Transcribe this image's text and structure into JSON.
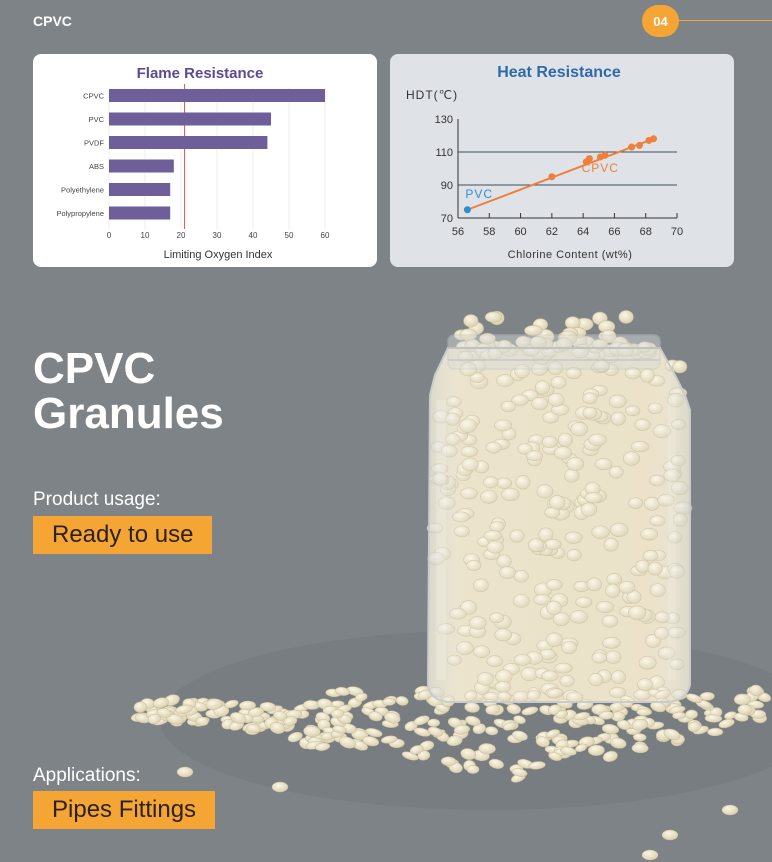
{
  "header": {
    "section_label": "CPVC",
    "page_number": "04",
    "accent": "#f5a533"
  },
  "hero": {
    "title_line1": "CPVC",
    "title_line2": "Granules"
  },
  "usage": {
    "label": "Product usage:",
    "value": "Ready to use"
  },
  "applications": {
    "label": "Applications:",
    "value": "Pipes Fittings"
  },
  "chart_data": [
    {
      "type": "bar",
      "orientation": "horizontal",
      "title": "Flame Resistance",
      "xlabel": "Limiting Oxygen Index",
      "ylabel": "",
      "categories": [
        "CPVC",
        "PVC",
        "PVDF",
        "ABS",
        "Polyethylene",
        "Polypropylene"
      ],
      "values": [
        60,
        45,
        44,
        18,
        17,
        17
      ],
      "xlim": [
        0,
        60
      ],
      "xticks": [
        0,
        10,
        20,
        30,
        40,
        50,
        60
      ],
      "reference_line": 21,
      "bar_color": "#6e5e99",
      "grid": true
    },
    {
      "type": "line",
      "title": "Heat Resistance",
      "xlabel": "Chlorine Content (wt%)",
      "ylabel": "HDT(℃)",
      "xlim": [
        56,
        70
      ],
      "ylim": [
        70,
        130
      ],
      "xticks": [
        56,
        58,
        60,
        62,
        64,
        66,
        68,
        70
      ],
      "yticks": [
        70,
        90,
        110,
        130
      ],
      "hlines": [
        90,
        110
      ],
      "series": [
        {
          "name": "PVC",
          "color": "#2f8fd0",
          "points": [
            [
              56.6,
              75
            ]
          ]
        },
        {
          "name": "CPVC",
          "color": "#ef7f3c",
          "points": [
            [
              62,
              95
            ],
            [
              64.2,
              104
            ],
            [
              64.4,
              106
            ],
            [
              65.1,
              107
            ],
            [
              65.4,
              108
            ],
            [
              67.1,
              113
            ],
            [
              67.6,
              114
            ],
            [
              68.2,
              117
            ],
            [
              68.5,
              118
            ]
          ]
        }
      ],
      "trend": [
        [
          56.6,
          75
        ],
        [
          68.5,
          118
        ]
      ]
    }
  ]
}
